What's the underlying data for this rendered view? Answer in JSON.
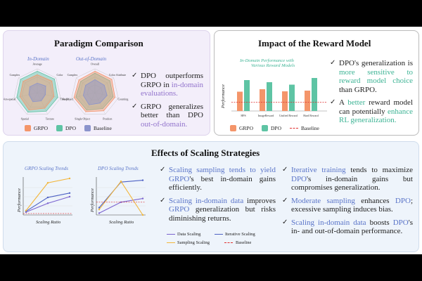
{
  "paradigm": {
    "title": "Paradigm Comparison",
    "in_domain_label": "In-Domain",
    "out_domain_label": "Out-of-Domain",
    "in_domain_axes": [
      "Average",
      "Color",
      "Shape",
      "Texture",
      "Spatial",
      "Non-spatial",
      "Complex"
    ],
    "out_domain_axes": [
      "Overall",
      "Color Attribute",
      "Counting",
      "Position",
      "Single Object",
      "Two Object",
      "Complex"
    ],
    "bullets": [
      {
        "pre": "DPO outperforms GRPO in ",
        "hl": "in-domain evaluations.",
        "post": ""
      },
      {
        "pre": "GRPO generalizes better than DPO ",
        "hl": "out-of-domain.",
        "post": ""
      }
    ],
    "legend": [
      "GRPO",
      "DPO",
      "Baseline"
    ],
    "colors": {
      "grpo": "#f4956a",
      "dpo": "#5ec4a4",
      "baseline": "#8b93cc"
    }
  },
  "reward": {
    "title": "Impact of the Reward Model",
    "chart_title_l1": "In-Domain Performance with",
    "chart_title_l2": "Various Reward Models",
    "ylabel": "Performance",
    "legend": [
      "GRPO",
      "DPO",
      "Baseline"
    ],
    "bullets": [
      {
        "pre": "DPO's generalization is ",
        "hl": "more sensitive to reward model choice",
        "post": " than GRPO."
      },
      {
        "pre": "A ",
        "hl": "better",
        "post": " reward model can potentially ",
        "hl2": "enhance RL generalization."
      }
    ]
  },
  "chart_data": [
    {
      "type": "bar",
      "title": "In-Domain Performance with Various Reward Models",
      "ylabel": "Performance",
      "categories": [
        "HPS",
        "ImageReward",
        "Unified Reward",
        "Hard Reward"
      ],
      "series": [
        {
          "name": "GRPO",
          "values": [
            0.55,
            0.62,
            0.56,
            0.58
          ]
        },
        {
          "name": "DPO",
          "values": [
            0.88,
            0.82,
            0.75,
            0.94
          ]
        }
      ],
      "baseline": {
        "name": "Baseline",
        "value": 0.25
      },
      "ylim": [
        0,
        1
      ]
    },
    {
      "type": "line",
      "title": "GRPO Scaling Trends",
      "xlabel": "Scaling Ratio",
      "ylabel": "Performance",
      "x": [
        1,
        2,
        3
      ],
      "series": [
        {
          "name": "Data Scaling",
          "values": [
            0.08,
            0.32,
            0.5
          ]
        },
        {
          "name": "Iterative Scaling",
          "values": [
            0.1,
            0.48,
            0.6
          ]
        },
        {
          "name": "Sampling Scaling",
          "values": [
            0.12,
            0.88,
            1.0
          ]
        }
      ],
      "baseline": {
        "name": "Baseline",
        "value": 0.04
      }
    },
    {
      "type": "line",
      "title": "DPO Scaling Trends",
      "xlabel": "Scaling Ratio",
      "ylabel": "Performance",
      "x": [
        1,
        2,
        3
      ],
      "series": [
        {
          "name": "Data Scaling",
          "values": [
            0.05,
            0.35,
            0.45
          ]
        },
        {
          "name": "Iterative Scaling",
          "values": [
            0.2,
            0.9,
            0.95
          ]
        },
        {
          "name": "Sampling Scaling",
          "values": [
            0.15,
            0.92,
            0.0
          ]
        }
      ],
      "baseline": {
        "name": "Baseline",
        "value": 0.35
      }
    }
  ],
  "scaling": {
    "title": "Effects of Scaling Strategies",
    "grpo_title": "GRPO Scaling Trends",
    "dpo_title": "DPO Scaling Trends",
    "xlabel": "Scaling Ratio",
    "ylabel": "Performance",
    "legend": [
      "Data Scaling",
      "Iterative Scaling",
      "Sampling Scaling",
      "Baseline"
    ],
    "colors": {
      "data": "#7b63cf",
      "iter": "#4e62c4",
      "samp": "#f3b63a",
      "base": "#e03030"
    },
    "col1": [
      {
        "pre": "",
        "hl": "Scaling sampling tends to yield",
        "post": " ",
        "hl2": "GRPO",
        "post2": "'s best in-domain gains efficiently."
      },
      {
        "pre": "",
        "hl": "Scaling in-domain data",
        "post": " improves ",
        "hl2": "GRPO",
        "post2": " generalization but risks diminishing returns."
      }
    ],
    "col2": [
      {
        "pre": "",
        "hl": "Iterative training",
        "post": " tends to maximize ",
        "hl2": "DPO",
        "post2": "'s in-domain gains but compromises generalization."
      },
      {
        "pre": "",
        "hl": "Moderate sampling",
        "post": " enhances ",
        "hl2": "DPO",
        "post2": "; excessive sampling induces bias."
      },
      {
        "pre": "",
        "hl": "Scaling in-domain data",
        "post": " boosts ",
        "hl2": "DPO",
        "post2": "'s in- and out-of-domain performance."
      }
    ]
  }
}
